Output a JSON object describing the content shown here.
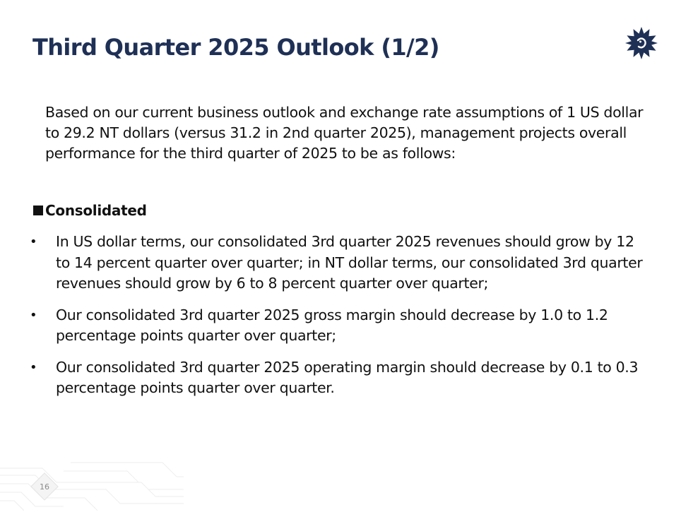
{
  "slide": {
    "title": "Third Quarter 2025 Outlook (1/2)",
    "intro": "Based on our current business outlook and exchange rate assumptions of 1 US dollar to 29.2 NT dollars (versus 31.2 in 2nd quarter 2025), management projects overall performance for the third quarter of 2025 to be as follows:",
    "section_heading": "Consolidated",
    "bullet_symbol": "•",
    "bullets": [
      "In US dollar terms, our consolidated 3rd quarter 2025 revenues should grow by 12 to 14 percent quarter over quarter; in NT dollar terms, our consolidated 3rd quarter revenues should grow by 6 to 8 percent quarter over quarter;",
      "Our consolidated 3rd quarter 2025 gross margin should decrease by 1.0 to 1.2 percentage points quarter over quarter;",
      "Our consolidated 3rd quarter 2025 operating margin should decrease by 0.1 to 0.3 percentage points quarter over quarter."
    ],
    "page_number": "16"
  },
  "colors": {
    "title": "#1f3056",
    "logo": "#1f3056",
    "text": "#111111",
    "page_number": "#8a8a8a"
  },
  "icons": {
    "logo": "sun-logo-icon",
    "section_marker": "square-bullet-icon",
    "footer": "circuit-pattern-icon"
  }
}
